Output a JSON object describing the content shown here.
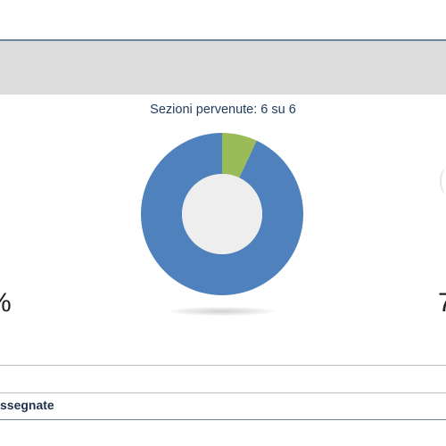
{
  "panel": {
    "sections_label": "Sezioni pervenute: 6 su 6",
    "left_percent_fragment": "%",
    "right_value_fragment": "7",
    "assigned_label_fragment": "ssegnate"
  },
  "chart_data": {
    "type": "pie",
    "title": "Sezioni pervenute: 6 su 6",
    "donut": true,
    "slices": [
      {
        "value": 0.93,
        "color": "#4f81bd"
      },
      {
        "value": 0.07,
        "color": "#9bbb59"
      }
    ],
    "hole_color": "#eeeeee"
  }
}
